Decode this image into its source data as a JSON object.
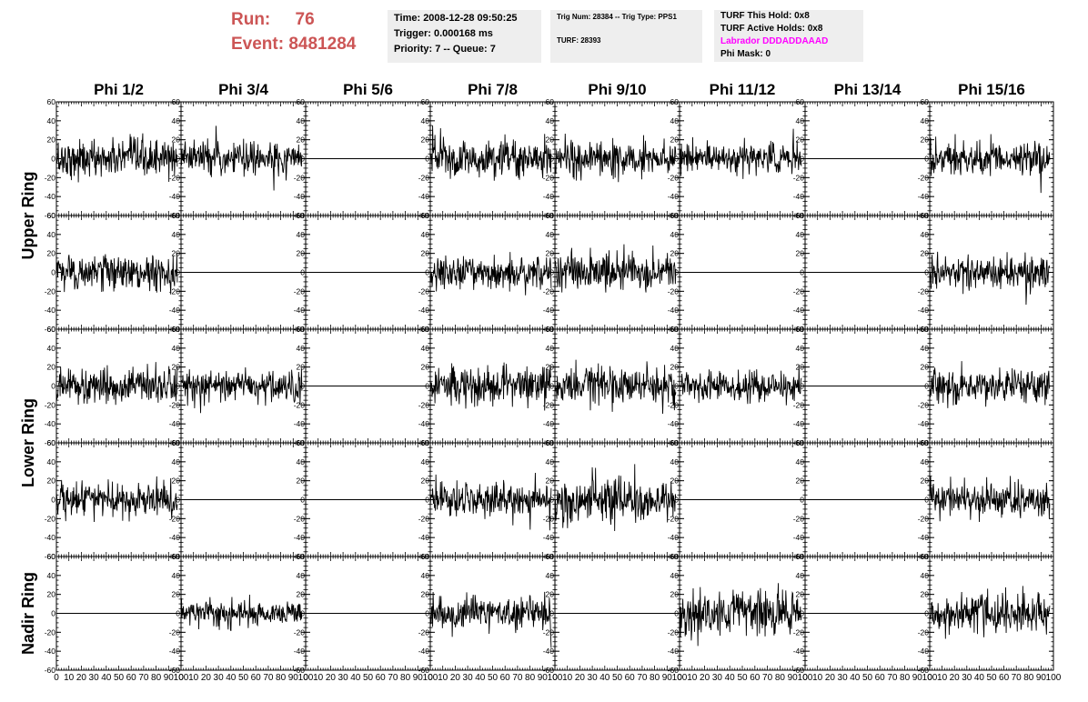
{
  "header": {
    "run_label": "Run:",
    "run_value": "76",
    "event_label": "Event:",
    "event_value": "8481284",
    "time_info": {
      "time": "Time: 2008-12-28 09:50:25",
      "trigger": "Trigger: 0.000168 ms",
      "priority": "Priority: 7 -- Queue: 7"
    },
    "trig_info": {
      "trig": "Trig Num: 28384 -- Trig Type: PPS1",
      "turf": "TURF: 28393"
    },
    "turf_info": {
      "this_hold": "TURF This Hold: 0x8",
      "active_holds": "TURF Active Holds: 0x8",
      "labrador": "Labrador DDDADDAAAD",
      "phi_mask": "Phi Mask: 0"
    },
    "labrador_color": "#ff00ff"
  },
  "chart_data": {
    "type": "line",
    "columns": [
      "Phi 1/2",
      "Phi 3/4",
      "Phi 5/6",
      "Phi 7/8",
      "Phi 9/10",
      "Phi 11/12",
      "Phi 13/14",
      "Phi 15/16"
    ],
    "ring_labels": [
      "Upper Ring",
      "Lower Ring",
      "Nadir Ring"
    ],
    "rows_per_ring": [
      2,
      2,
      1
    ],
    "xlim": [
      0,
      100
    ],
    "ylim": [
      -60,
      60
    ],
    "y_ticks": [
      -60,
      -40,
      -20,
      0,
      20,
      40,
      60
    ],
    "x_ticks": [
      0,
      10,
      20,
      30,
      40,
      50,
      60,
      70,
      80,
      90,
      100
    ],
    "samples_per_trace": 260,
    "trace_x_range": [
      0,
      97
    ],
    "line_color": "#000000",
    "amplitude_std": [
      [
        10,
        9,
        0,
        10,
        9,
        8,
        0,
        9
      ],
      [
        9,
        0,
        0,
        9,
        10,
        0,
        0,
        9
      ],
      [
        9,
        8,
        0,
        10,
        10,
        8,
        0,
        9
      ],
      [
        9,
        0,
        0,
        9,
        12,
        0,
        0,
        9
      ],
      [
        0,
        7,
        0,
        9,
        0,
        12,
        0,
        10
      ]
    ]
  }
}
